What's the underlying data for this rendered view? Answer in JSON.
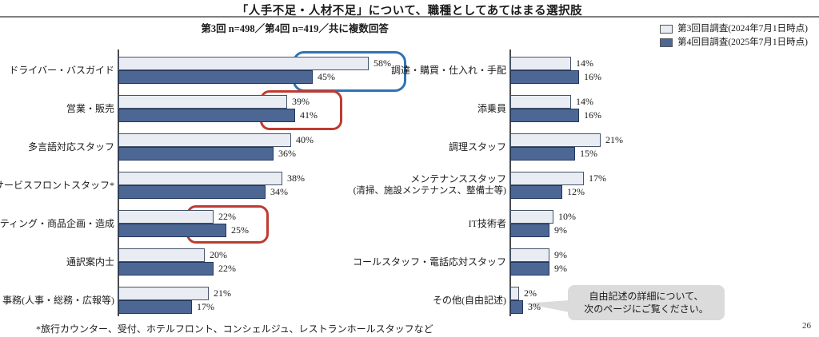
{
  "page": {
    "title": "「人手不足・人材不足」について、職種としてあてはまる選択肢",
    "subtitle": "第3回 n=498／第4回 n=419／共に複数回答",
    "footnote": "*旅行カウンター、受付、ホテルフロント、コンシェルジュ、レストランホールスタッフなど",
    "page_number": "26"
  },
  "legend": {
    "items": [
      {
        "label": "第3回目調査(2024年7月1日時点)",
        "color": "#E9EDF3"
      },
      {
        "label": "第4回目調査(2025年7月1日時点)",
        "color": "#4D6795"
      }
    ]
  },
  "callout": {
    "line1": "自由記述の詳細について、",
    "line2": "次のページにご覧ください。"
  },
  "annotations": [
    {
      "shape": "rounded-box",
      "color": "#2E74B5",
      "target": "ドライバー・バスガイド 58%/45%"
    },
    {
      "shape": "rounded-box",
      "color": "#BE3B31",
      "target": "営業・販売 39%/41%"
    },
    {
      "shape": "rounded-box",
      "color": "#BE3B31",
      "target": "マーケティング・商品企画・造成 22%/25%"
    }
  ],
  "chart_data": [
    {
      "type": "bar",
      "orientation": "horizontal",
      "unit": "%",
      "grid": false,
      "value_labels": true,
      "xlim": [
        0,
        65
      ],
      "categories": [
        "ドライバー・バスガイド",
        "営業・販売",
        "多言語対応スタッフ",
        "サービスフロントスタッフ*",
        "マーケティング・商品企画・造成",
        "通訳案内士",
        "事務(人事・総務・広報等)"
      ],
      "series": [
        {
          "name": "第3回目調査(2024年7月1日時点)",
          "color": "#E9EDF3",
          "values": [
            58,
            39,
            40,
            38,
            22,
            20,
            21
          ]
        },
        {
          "name": "第4回目調査(2025年7月1日時点)",
          "color": "#4D6795",
          "values": [
            45,
            41,
            36,
            34,
            25,
            22,
            17
          ]
        }
      ]
    },
    {
      "type": "bar",
      "orientation": "horizontal",
      "unit": "%",
      "grid": false,
      "value_labels": true,
      "xlim": [
        0,
        65
      ],
      "categories": [
        "調達・購買・仕入れ・手配",
        "添乗員",
        "調理スタッフ",
        "メンテナンススタッフ\n(清掃、施設メンテナンス、整備士等)",
        "IT技術者",
        "コールスタッフ・電話応対スタッフ",
        "その他(自由記述)"
      ],
      "series": [
        {
          "name": "第3回目調査(2024年7月1日時点)",
          "color": "#E9EDF3",
          "values": [
            14,
            14,
            21,
            17,
            10,
            9,
            2
          ]
        },
        {
          "name": "第4回目調査(2025年7月1日時点)",
          "color": "#4D6795",
          "values": [
            16,
            16,
            15,
            12,
            9,
            9,
            3
          ]
        }
      ]
    }
  ]
}
